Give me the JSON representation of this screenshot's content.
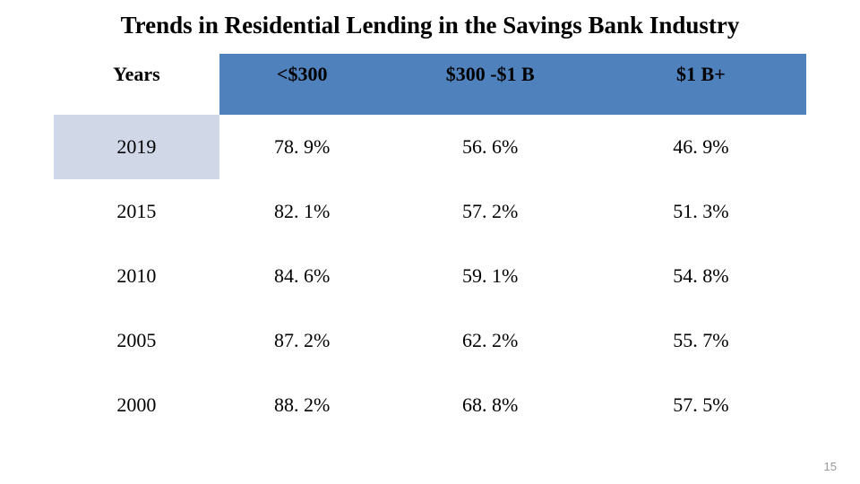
{
  "title": "Trends in Residential Lending in the Savings Bank Industry",
  "table": {
    "type": "table",
    "header_bg_color": "#4f81bd",
    "header_first_cell_bg": "#ffffff",
    "alt_first_cell_bg": "#d0d8e8",
    "text_color": "#000000",
    "font_family": "Times New Roman",
    "header_fontsize": 22,
    "cell_fontsize": 22,
    "columns": [
      "Years",
      "<$300",
      "$300 -$1 B",
      "$1 B+"
    ],
    "column_widths_pct": [
      22,
      22,
      28,
      28
    ],
    "rows": [
      [
        "2019",
        "78. 9%",
        "56. 6%",
        "46. 9%"
      ],
      [
        "2015",
        "82. 1%",
        "57. 2%",
        "51. 3%"
      ],
      [
        "2010",
        "84. 6%",
        "59. 1%",
        "54. 8%"
      ],
      [
        "2005",
        "87. 2%",
        "62. 2%",
        "55. 7%"
      ],
      [
        "2000",
        "88. 2%",
        "68. 8%",
        "57. 5%"
      ]
    ],
    "alt_rows": [
      true,
      false,
      false,
      false,
      false
    ]
  },
  "page_number": "15",
  "background_color": "#ffffff"
}
